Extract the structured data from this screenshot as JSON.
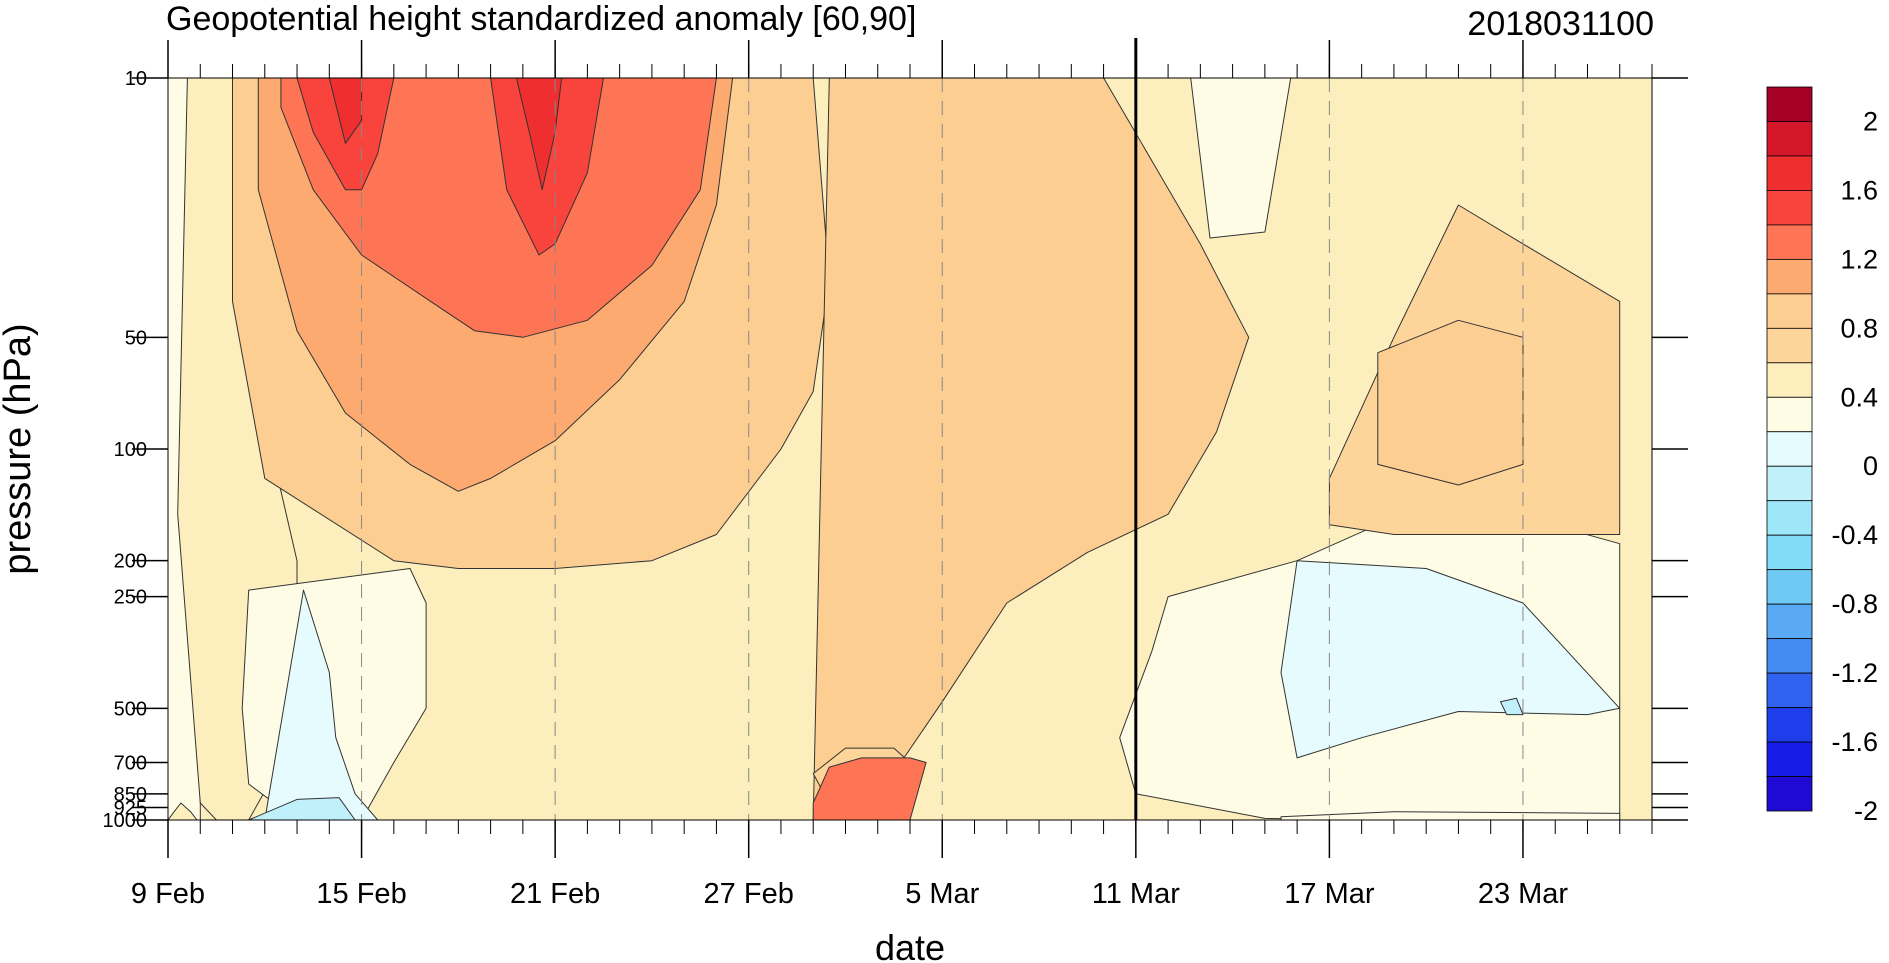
{
  "chart_data": {
    "type": "heatmap",
    "subtype": "filled-contour",
    "title": "Geopotential height standardized anomaly [60,90]",
    "date_stamp": "2018031100",
    "xlabel": "date",
    "ylabel": "pressure (hPa)",
    "x_axis": {
      "start": "2018-02-09",
      "end": "2018-03-27",
      "major_ticks": [
        {
          "date": "2018-02-09",
          "label": "9 Feb"
        },
        {
          "date": "2018-02-15",
          "label": "15 Feb"
        },
        {
          "date": "2018-02-21",
          "label": "21 Feb"
        },
        {
          "date": "2018-02-27",
          "label": "27 Feb"
        },
        {
          "date": "2018-03-05",
          "label": "5 Mar"
        },
        {
          "date": "2018-03-11",
          "label": "11 Mar"
        },
        {
          "date": "2018-03-17",
          "label": "17 Mar"
        },
        {
          "date": "2018-03-23",
          "label": "23 Mar"
        }
      ],
      "minor_tick_interval_days": 1,
      "current_date_line": "2018-03-11",
      "dashed_gridlines": true
    },
    "y_axis": {
      "scale": "log",
      "reversed": true,
      "range_hPa": [
        1000,
        10
      ],
      "ticks": [
        {
          "value": 10,
          "label": "10"
        },
        {
          "value": 50,
          "label": "50"
        },
        {
          "value": 100,
          "label": "100"
        },
        {
          "value": 200,
          "label": "200"
        },
        {
          "value": 250,
          "label": "250"
        },
        {
          "value": 500,
          "label": "500"
        },
        {
          "value": 700,
          "label": "700"
        },
        {
          "value": 850,
          "label": "850"
        },
        {
          "value": 925,
          "label": "925"
        },
        {
          "value": 1000,
          "label": "1000"
        }
      ]
    },
    "colorbar": {
      "labels": [
        "2",
        "1.6",
        "1.2",
        "0.8",
        "0.4",
        "0",
        "-0.4",
        "-0.8",
        "-1.2",
        "-1.6",
        "-2"
      ],
      "colors": [
        "#a50026",
        "#d4162b",
        "#ef2e2f",
        "#f8443c",
        "#fe7555",
        "#fdaa70",
        "#fdce92",
        "#fdd499",
        "#fdefbd",
        "#fefce5",
        "#e5fbfd",
        "#c0f1fb",
        "#9ee7f9",
        "#83dcf7",
        "#6fc9f5",
        "#5aaaf3",
        "#448cf1",
        "#2f62ee",
        "#1e3deb",
        "#171ce7",
        "#1f0ad4"
      ]
    },
    "contours": [
      {
        "fill_index": 9,
        "t": [
          0,
          0,
          0.6,
          1,
          1,
          0.9,
          0.7,
          0.4,
          0.15,
          0
        ],
        "p": [
          1000,
          10,
          10,
          10,
          1000,
          1000,
          950,
          900,
          960,
          1000
        ]
      },
      {
        "fill_index": 8,
        "t": [
          0.6,
          2.6,
          3.0,
          3.2,
          4.0,
          4.0,
          3.5,
          2.5,
          1.5,
          1.0,
          0.3
        ],
        "p": [
          10,
          10,
          30,
          100,
          200,
          250,
          700,
          1000,
          1000,
          900,
          150
        ]
      },
      {
        "fill_index": 6,
        "t": [
          2.0,
          20.0,
          20.5,
          20.0,
          19.0,
          17.0,
          15.0,
          12.0,
          9.0,
          7.0,
          3.0,
          2.0
        ],
        "p": [
          10,
          10,
          35,
          70,
          100,
          170,
          200,
          210,
          210,
          200,
          120,
          40
        ]
      },
      {
        "fill_index": 6,
        "t": [
          20.5,
          29.0,
          32.0,
          33.5,
          32.5,
          31.0,
          28.5,
          26.0,
          24.0,
          21.5,
          20.0
        ],
        "p": [
          10,
          10,
          28,
          50,
          90,
          150,
          190,
          260,
          480,
          1000,
          1000
        ]
      },
      {
        "fill_index": 5,
        "t": [
          2.8,
          17.5,
          17.0,
          16.0,
          14.0,
          12.0,
          10.0,
          9.0,
          7.5,
          5.5,
          4.0,
          2.8
        ],
        "p": [
          10,
          10,
          22,
          40,
          65,
          95,
          120,
          130,
          110,
          80,
          48,
          20
        ]
      },
      {
        "fill_index": 4,
        "t": [
          3.5,
          17.0,
          16.5,
          15.0,
          13.0,
          11.0,
          9.5,
          8.5,
          6.0,
          4.5,
          3.5
        ],
        "p": [
          10,
          10,
          20,
          32,
          45,
          50,
          48,
          42,
          30,
          20,
          12
        ]
      },
      {
        "fill_index": 3,
        "t": [
          4.0,
          7.0,
          6.5,
          6.0,
          5.5,
          4.5,
          4.0
        ],
        "p": [
          10,
          10,
          16,
          20,
          20,
          14,
          10
        ]
      },
      {
        "fill_index": 3,
        "t": [
          10.0,
          13.5,
          13.0,
          12.0,
          11.5,
          10.5,
          10.0
        ],
        "p": [
          10,
          10,
          18,
          28,
          30,
          20,
          10
        ]
      },
      {
        "fill_index": 2,
        "t": [
          5.0,
          6.0,
          6.0,
          5.5,
          5.0
        ],
        "p": [
          10,
          10,
          13,
          15,
          10
        ]
      },
      {
        "fill_index": 2,
        "t": [
          10.8,
          12.2,
          12.0,
          11.6,
          11.2,
          10.8
        ],
        "p": [
          10,
          10,
          14,
          20,
          14,
          10
        ]
      },
      {
        "fill_index": 9,
        "t": [
          2.5,
          7.5,
          8.0,
          8.0,
          7.0,
          6.0,
          4.0,
          2.5,
          2.3
        ],
        "p": [
          240,
          210,
          260,
          500,
          700,
          1000,
          1000,
          800,
          500
        ]
      },
      {
        "fill_index": 10,
        "t": [
          3.0,
          4.2,
          5.0,
          5.2,
          5.8,
          6.5,
          2.0
        ],
        "p": [
          1000,
          240,
          400,
          600,
          850,
          1000,
          1000
        ]
      },
      {
        "fill_index": 11,
        "t": [
          2.5,
          4.0,
          5.3,
          5.8,
          2.3
        ],
        "p": [
          1000,
          880,
          870,
          1000,
          1000
        ]
      },
      {
        "fill_index": 7,
        "t": [
          20.0,
          21.0,
          22.5,
          23.0,
          22.8,
          21.5,
          20.5
        ],
        "p": [
          750,
          640,
          640,
          700,
          1000,
          1000,
          900
        ]
      },
      {
        "fill_index": 4,
        "t": [
          20.0,
          20.5,
          21.5,
          23.0,
          23.5,
          23.0,
          20.0
        ],
        "p": [
          900,
          720,
          680,
          680,
          700,
          1000,
          1000
        ]
      },
      {
        "fill_index": 9,
        "t": [
          31.0,
          35.0,
          39.0,
          40.5,
          45.0,
          45.0,
          38.0,
          34.0,
          30.0,
          29.5,
          30.5
        ],
        "p": [
          250,
          200,
          140,
          140,
          180,
          1000,
          1000,
          990,
          850,
          600,
          350
        ]
      },
      {
        "fill_index": 10,
        "t": [
          35.0,
          39.0,
          42.0,
          45.0,
          44.0,
          40.0,
          37.0,
          35.0,
          34.5
        ],
        "p": [
          200,
          210,
          260,
          500,
          520,
          510,
          600,
          680,
          400
        ]
      },
      {
        "fill_index": 11,
        "t": [
          41.3,
          41.8,
          42.0,
          41.5
        ],
        "p": [
          480,
          470,
          520,
          520
        ]
      },
      {
        "fill_index": 9,
        "t": [
          31.7,
          34.8,
          34.0,
          32.3
        ],
        "p": [
          10,
          10,
          26,
          27
        ]
      },
      {
        "fill_index": 7,
        "t": [
          38.0,
          45.0,
          45.0,
          42.0,
          40.0,
          38.0,
          36.0,
          36.0
        ],
        "p": [
          170,
          170,
          40,
          28,
          22,
          50,
          120,
          160
        ]
      },
      {
        "fill_index": 6,
        "t": [
          37.5,
          40.0,
          42.0,
          42.0,
          40.0,
          37.5
        ],
        "p": [
          55,
          45,
          50,
          110,
          125,
          110
        ]
      },
      {
        "fill_index": 9,
        "t": [
          34.5,
          45.0,
          45.0,
          38.0,
          34.5
        ],
        "p": [
          1000,
          1000,
          960,
          950,
          980
        ]
      }
    ]
  }
}
